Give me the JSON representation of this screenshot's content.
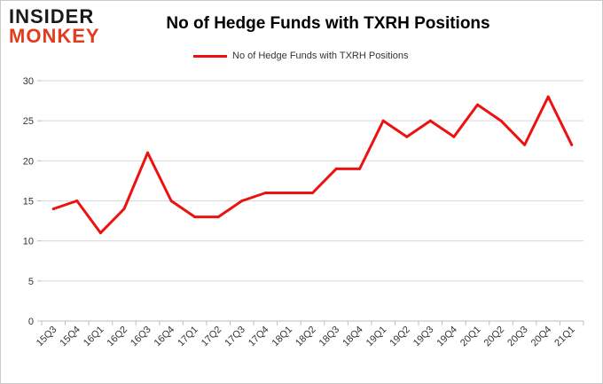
{
  "logo": {
    "top": "INSIDER",
    "bottom": "MONKEY"
  },
  "chart_data": {
    "type": "line",
    "title": "No of Hedge Funds with TXRH Positions",
    "xlabel": "",
    "ylabel": "",
    "ylim": [
      0,
      30
    ],
    "yticks": [
      0,
      5,
      10,
      15,
      20,
      25,
      30
    ],
    "grid": true,
    "legend_position": "top",
    "categories": [
      "15Q3",
      "15Q4",
      "16Q1",
      "16Q2",
      "16Q3",
      "16Q4",
      "17Q1",
      "17Q2",
      "17Q3",
      "17Q4",
      "18Q1",
      "18Q2",
      "18Q3",
      "18Q4",
      "19Q1",
      "19Q2",
      "19Q3",
      "19Q4",
      "20Q1",
      "20Q2",
      "20Q3",
      "20Q4",
      "21Q1"
    ],
    "series": [
      {
        "name": "No of Hedge Funds with TXRH Positions",
        "color": "#ee1111",
        "values": [
          14,
          15,
          11,
          14,
          21,
          15,
          13,
          13,
          15,
          16,
          16,
          16,
          19,
          19,
          25,
          23,
          25,
          23,
          27,
          25,
          22,
          28,
          22
        ]
      }
    ]
  }
}
